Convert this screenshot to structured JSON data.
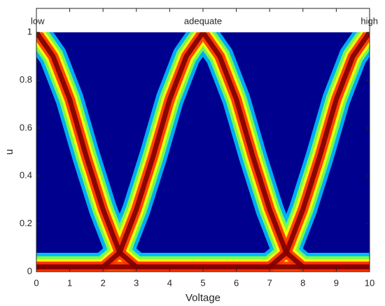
{
  "chart_data": {
    "type": "line",
    "xlabel": "Voltage",
    "ylabel": "u",
    "x": [
      0,
      0.5,
      1,
      1.5,
      2,
      2.5,
      3,
      3.5,
      4,
      4.5,
      5,
      5.5,
      6,
      6.5,
      7,
      7.5,
      8,
      8.5,
      9,
      9.5,
      10
    ],
    "series": [
      {
        "name": "low",
        "values": [
          1,
          0.9,
          0.72,
          0.48,
          0.26,
          0.08,
          0.02,
          0.02,
          0.02,
          0.02,
          0.02,
          0.02,
          0.02,
          0.02,
          0.02,
          0.02,
          0.02,
          0.02,
          0.02,
          0.02,
          0.02
        ]
      },
      {
        "name": "adequate",
        "values": [
          0.02,
          0.02,
          0.02,
          0.02,
          0.02,
          0.08,
          0.26,
          0.48,
          0.72,
          0.9,
          1,
          0.9,
          0.72,
          0.48,
          0.26,
          0.08,
          0.02,
          0.02,
          0.02,
          0.02,
          0.02
        ]
      },
      {
        "name": "high",
        "values": [
          0.02,
          0.02,
          0.02,
          0.02,
          0.02,
          0.02,
          0.02,
          0.02,
          0.02,
          0.02,
          0.02,
          0.02,
          0.02,
          0.02,
          0.02,
          0.08,
          0.26,
          0.48,
          0.72,
          0.9,
          1
        ]
      }
    ],
    "background": "#00008f",
    "band_colors": [
      "#00bfff",
      "#7fff40",
      "#ffff00",
      "#ff3000",
      "#7f0000"
    ],
    "xlim": [
      0,
      10
    ],
    "xticks": [
      0,
      1,
      2,
      3,
      4,
      5,
      6,
      7,
      8,
      9,
      10
    ],
    "ylim": [
      0,
      1.1
    ],
    "yticks": [
      0,
      0.2,
      0.4,
      0.6,
      0.8,
      1
    ]
  }
}
